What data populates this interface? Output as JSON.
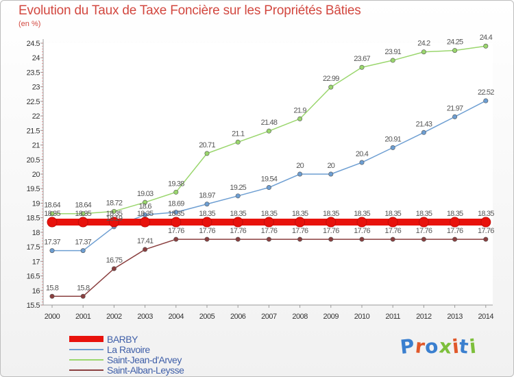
{
  "chart_data": {
    "type": "line",
    "title": "Evolution du Taux de Taxe Foncière sur les Propriétés Bâties",
    "subtitle": "(en %)",
    "xlabel": "",
    "ylabel": "",
    "x": [
      "2000",
      "2001",
      "2002",
      "2003",
      "2004",
      "2005",
      "2006",
      "2007",
      "2008",
      "2009",
      "2010",
      "2011",
      "2012",
      "2013",
      "2014"
    ],
    "ylim": [
      15.5,
      24.5
    ],
    "yticks": [
      "15.5",
      "16",
      "16.5",
      "17",
      "17.5",
      "18",
      "18.5",
      "19",
      "19.5",
      "20",
      "20.5",
      "21",
      "21.5",
      "22",
      "22.5",
      "23",
      "23.5",
      "24",
      "24.5"
    ],
    "grid": false,
    "legend_position": "bottom-left",
    "series": [
      {
        "name": "BARBY",
        "color": "#e8120c",
        "values": [
          18.35,
          18.35,
          18.35,
          18.35,
          18.35,
          18.35,
          18.35,
          18.35,
          18.35,
          18.35,
          18.35,
          18.35,
          18.35,
          18.35,
          18.35
        ],
        "labels": [
          "18.35",
          "18.35",
          "18.35",
          "18.35",
          "18.35",
          "18.35",
          "18.35",
          "18.35",
          "18.35",
          "18.35",
          "18.35",
          "18.35",
          "18.35",
          "18.35",
          "18.35"
        ]
      },
      {
        "name": "La Ravoire",
        "color": "#6d9ed2",
        "values": [
          17.37,
          17.37,
          18.19,
          18.6,
          18.69,
          18.97,
          19.25,
          19.54,
          20,
          20,
          20.4,
          20.91,
          21.43,
          21.97,
          22.52
        ],
        "labels": [
          "17.37",
          "17.37",
          "18.19",
          "18.6",
          "18.69",
          "18.97",
          "19.25",
          "19.54",
          "20",
          "20",
          "20.4",
          "20.91",
          "21.43",
          "21.97",
          "22.52"
        ]
      },
      {
        "name": "Saint-Jean-d'Arvey",
        "color": "#9ad66d",
        "values": [
          18.64,
          18.64,
          18.72,
          19.03,
          19.38,
          20.71,
          21.1,
          21.48,
          21.9,
          22.99,
          23.67,
          23.91,
          24.2,
          24.25,
          24.4
        ],
        "labels": [
          "18.64",
          "18.64",
          "18.72",
          "19.03",
          "19.38",
          "20.71",
          "21.1",
          "21.48",
          "21.9",
          "22.99",
          "23.67",
          "23.91",
          "24.2",
          "24.25",
          "24.4"
        ]
      },
      {
        "name": "Saint-Alban-Leysse",
        "color": "#8a3f3f",
        "values": [
          15.8,
          15.8,
          16.75,
          17.41,
          17.76,
          17.76,
          17.76,
          17.76,
          17.76,
          17.76,
          17.76,
          17.76,
          17.76,
          17.76,
          17.76
        ],
        "labels": [
          "15.8",
          "15.8",
          "16.75",
          "17.41",
          "17.76",
          "17.76",
          "17.76",
          "17.76",
          "17.76",
          "17.76",
          "17.76",
          "17.76",
          "17.76",
          "17.76",
          "17.76"
        ]
      }
    ]
  },
  "logo": {
    "letters": [
      "P",
      "r",
      "o",
      "x",
      "i",
      "t",
      "i"
    ],
    "colors": [
      "#3a7fcf",
      "#e0582a",
      "#3a7fcf",
      "#7dbf3b",
      "#e0582a",
      "#3a7fcf",
      "#7dbf3b"
    ]
  }
}
